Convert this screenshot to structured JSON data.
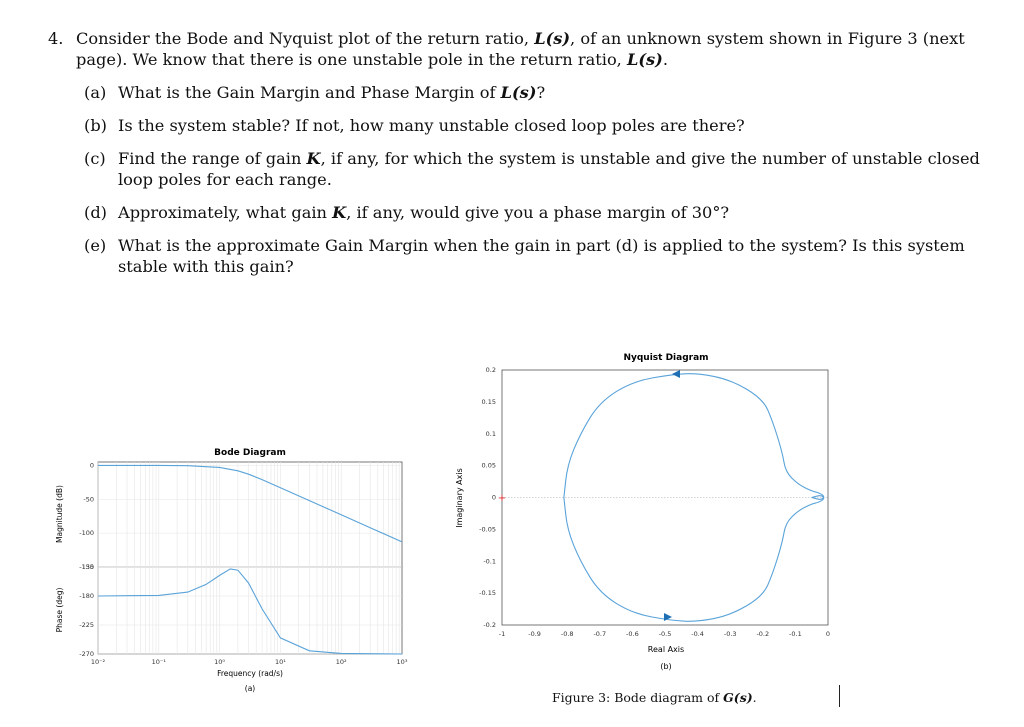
{
  "question": {
    "number": "4.",
    "intro_a": "Consider the Bode and Nyquist plot of the return ratio, ",
    "intro_L": "L(s)",
    "intro_b": ", of an unknown system shown in Figure 3 (next page). We know that there is one unstable pole in the return ratio, ",
    "intro_L2": "L(s)",
    "intro_c": ".",
    "parts": [
      {
        "label": "(a)",
        "pre": "What is the Gain Margin and Phase Margin of ",
        "math": "L(s)",
        "post": "?"
      },
      {
        "label": "(b)",
        "pre": "Is the system stable? If not, how many unstable closed loop poles are there?",
        "math": "",
        "post": ""
      },
      {
        "label": "(c)",
        "pre": "Find the range of gain ",
        "math": "K",
        "post": ", if any, for which the system is unstable and give the number of unstable closed loop poles for each range."
      },
      {
        "label": "(d)",
        "pre": "Approximately, what gain ",
        "math": "K",
        "post": ", if any, would give you a phase margin of 30°?"
      },
      {
        "label": "(e)",
        "pre": "What is the approximate Gain Margin when the gain in part (d) is applied to the system? Is this system stable with this gain?",
        "math": "",
        "post": ""
      }
    ]
  },
  "figure_caption": {
    "prefix": "Figure 3: Bode diagram of ",
    "math": "G(s)",
    "suffix": "."
  },
  "chart_data": [
    {
      "type": "line",
      "title": "Bode Diagram",
      "panel_label": "(a)",
      "xlabel": "Frequency (rad/s)",
      "x_scale": "log",
      "xlim": [
        0.01,
        1000
      ],
      "x_ticks": [
        "10⁻²",
        "10⁻¹",
        "10⁰",
        "10¹",
        "10²",
        "10³"
      ],
      "grid": true,
      "color": "#5aa3d9",
      "magnitude": {
        "ylabel": "Magnitude (dB)",
        "ylim": [
          -150,
          5
        ],
        "y_ticks": [
          "0",
          "-50",
          "-100",
          "-150"
        ],
        "x": [
          0.01,
          0.1,
          0.3,
          1,
          2,
          3,
          5,
          10,
          30,
          100,
          300,
          1000
        ],
        "y": [
          0,
          0,
          -0.5,
          -3,
          -8,
          -13,
          -21,
          -33,
          -52,
          -73,
          -92,
          -113
        ]
      },
      "phase": {
        "ylabel": "Phase (deg)",
        "ylim": [
          -270,
          -135
        ],
        "y_ticks": [
          "-135",
          "-180",
          "-225",
          "-270"
        ],
        "x": [
          0.01,
          0.1,
          0.3,
          0.6,
          1,
          1.5,
          2,
          3,
          5,
          10,
          30,
          100,
          1000
        ],
        "y": [
          -180,
          -179,
          -174,
          -162,
          -148,
          -138,
          -140,
          -160,
          -200,
          -245,
          -265,
          -269,
          -270
        ]
      }
    },
    {
      "type": "line",
      "title": "Nyquist Diagram",
      "panel_label": "(b)",
      "xlabel": "Real Axis",
      "ylabel": "Imaginary Axis",
      "xlim": [
        -1,
        0
      ],
      "ylim": [
        -0.2,
        0.2
      ],
      "x_ticks": [
        "-1",
        "-0.9",
        "-0.8",
        "-0.7",
        "-0.6",
        "-0.5",
        "-0.4",
        "-0.3",
        "-0.2",
        "-0.1",
        "0"
      ],
      "y_ticks": [
        "0.2",
        "0.15",
        "0.1",
        "0.05",
        "0",
        "-0.05",
        "-0.1",
        "-0.15",
        "-0.2"
      ],
      "grid": true,
      "critical_point": [
        -1,
        0
      ],
      "color": "#5aa3d9",
      "series": [
        {
          "x": [
            -0.05,
            -0.02,
            -0.01,
            -0.03,
            -0.05,
            -0.09,
            -0.13,
            -0.14,
            -0.17,
            -0.2,
            -0.3,
            -0.4,
            -0.48,
            -0.6,
            -0.7,
            -0.76,
            -0.8,
            -0.81
          ],
          "y": [
            0,
            0.004,
            -0.002,
            -0.008,
            -0.01,
            -0.02,
            -0.04,
            -0.07,
            -0.12,
            -0.155,
            -0.185,
            -0.195,
            -0.193,
            -0.182,
            -0.15,
            -0.1,
            -0.05,
            0
          ]
        },
        {
          "x": [
            -0.05,
            -0.02,
            -0.01,
            -0.03,
            -0.05,
            -0.09,
            -0.13,
            -0.14,
            -0.17,
            -0.2,
            -0.3,
            -0.4,
            -0.48,
            -0.6,
            -0.7,
            -0.76,
            -0.8,
            -0.81
          ],
          "y": [
            0,
            -0.004,
            0.002,
            0.008,
            0.01,
            0.02,
            0.04,
            0.07,
            0.12,
            0.155,
            0.185,
            0.195,
            0.193,
            0.182,
            0.15,
            0.1,
            0.05,
            0
          ]
        }
      ]
    }
  ]
}
